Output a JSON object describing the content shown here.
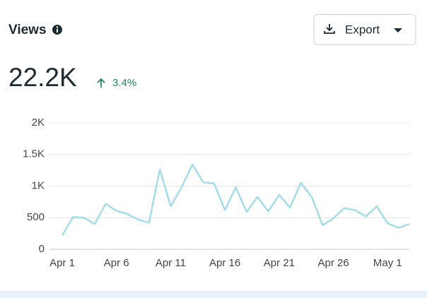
{
  "header": {
    "title": "Views",
    "button": "Export",
    "total": "22.2K",
    "change": "3.4%"
  },
  "chart_data": {
    "type": "line",
    "categories": [
      "Apr 1",
      null,
      null,
      null,
      null,
      "Apr 6",
      null,
      null,
      null,
      null,
      "Apr 11",
      null,
      null,
      null,
      null,
      "Apr 16",
      null,
      null,
      null,
      null,
      "Apr 21",
      null,
      null,
      null,
      null,
      "Apr 26",
      null,
      null,
      null,
      null,
      "May 1",
      null,
      null
    ],
    "series": [
      {
        "color": "#a6dbea",
        "values": [
          220,
          510,
          500,
          400,
          720,
          610,
          560,
          470,
          420,
          1260,
          680,
          980,
          1340,
          1060,
          1040,
          620,
          980,
          590,
          830,
          600,
          860,
          660,
          1050,
          830,
          380,
          490,
          650,
          620,
          520,
          680,
          410,
          340,
          400
        ]
      }
    ],
    "ylim": [
      0,
      2000
    ],
    "yticks": [
      0,
      500,
      {
        "value": 1000,
        "label": "1K"
      },
      {
        "value": 1500,
        "label": "1.5K"
      },
      {
        "value": 2000,
        "label": "2K"
      }
    ],
    "grid": true
  }
}
